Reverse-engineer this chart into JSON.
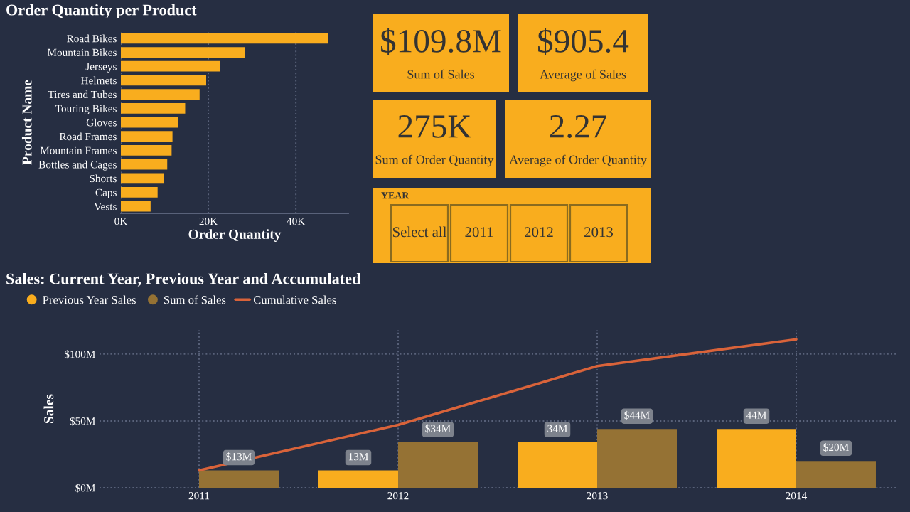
{
  "chart_data": [
    {
      "type": "bar",
      "orientation": "horizontal",
      "title": "Order Quantity per Product",
      "xlabel": "Order Quantity",
      "ylabel": "Product Name",
      "categories": [
        "Road Bikes",
        "Mountain Bikes",
        "Jerseys",
        "Helmets",
        "Tires and Tubes",
        "Touring Bikes",
        "Gloves",
        "Road Frames",
        "Mountain Frames",
        "Bottles and Cages",
        "Shorts",
        "Caps",
        "Vests"
      ],
      "values": [
        47300,
        28400,
        22700,
        19500,
        18000,
        14700,
        13000,
        11800,
        11600,
        10600,
        9900,
        8400,
        6800
      ],
      "color": "#f9ad1e",
      "xlim": [
        0,
        52000
      ],
      "xticks": [
        {
          "value": 0,
          "label": "0K"
        },
        {
          "value": 20000,
          "label": "20K"
        },
        {
          "value": 40000,
          "label": "40K"
        }
      ],
      "grid": "x"
    },
    {
      "type": "other",
      "annotations": [
        "$109.8M",
        "Sum of Sales",
        "$905.4",
        "Average of Sales",
        "275K",
        "Sum of Order Quantity",
        "2.27",
        "Average of Order Quantity",
        "YEAR",
        "Select all",
        "2011",
        "2012",
        "2013"
      ]
    },
    {
      "type": "bar",
      "title": "Sales: Current Year, Previous Year and Accumulated",
      "ylabel": "Sales",
      "categories": [
        "2011",
        "2012",
        "2013",
        "2014"
      ],
      "series": [
        {
          "name": "Previous Year Sales",
          "color": "#f9ad1e",
          "values": [
            null,
            13,
            34,
            44
          ],
          "value_labels": [
            null,
            "13M",
            "34M",
            "44M"
          ]
        },
        {
          "name": "Sum of Sales",
          "color": "#957234",
          "values": [
            13,
            34,
            44,
            20
          ],
          "value_labels": [
            "$13M",
            "$34M",
            "$44M",
            "$20M"
          ]
        },
        {
          "name": "Cumulative Sales",
          "type": "line",
          "color": "#d9633a",
          "values": [
            13,
            47,
            91,
            111
          ]
        }
      ],
      "ylim": [
        0,
        118
      ],
      "yticks": [
        {
          "value": 0,
          "label": "$0M"
        },
        {
          "value": 50,
          "label": "$50M"
        },
        {
          "value": 100,
          "label": "$100M"
        }
      ],
      "grid": true,
      "legend": "top left"
    }
  ]
}
